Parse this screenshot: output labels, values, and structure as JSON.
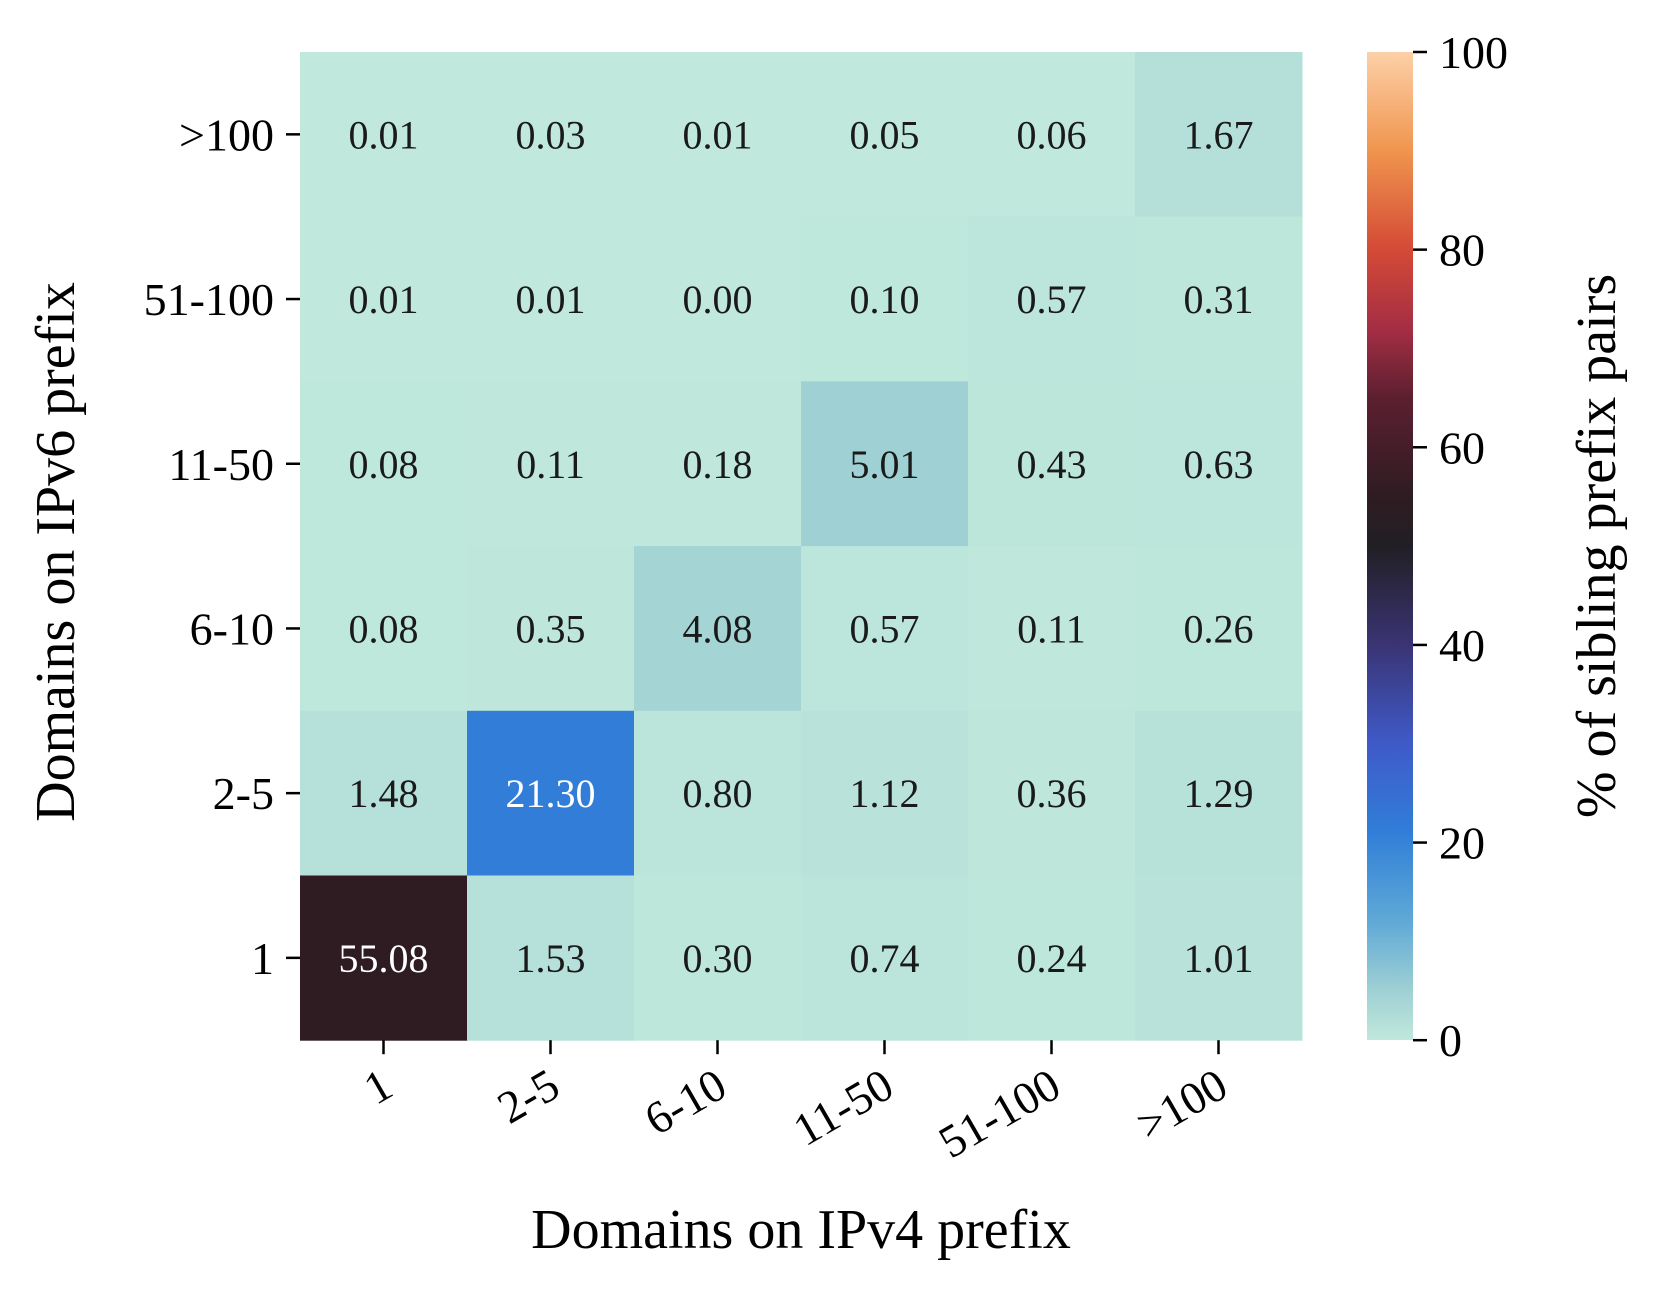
{
  "chart_data": {
    "type": "heatmap",
    "title": "",
    "xlabel": "Domains on IPv4 prefix",
    "ylabel": "Domains on IPv6 prefix",
    "x_categories": [
      "1",
      "2-5",
      "6-10",
      "11-50",
      "51-100",
      ">100"
    ],
    "y_categories": [
      ">100",
      "51-100",
      "11-50",
      "6-10",
      "2-5",
      "1"
    ],
    "values": [
      [
        0.01,
        0.03,
        0.01,
        0.05,
        0.06,
        1.67
      ],
      [
        0.01,
        0.01,
        0.0,
        0.1,
        0.57,
        0.31
      ],
      [
        0.08,
        0.11,
        0.18,
        5.01,
        0.43,
        0.63
      ],
      [
        0.08,
        0.35,
        4.08,
        0.57,
        0.11,
        0.26
      ],
      [
        1.48,
        21.3,
        0.8,
        1.12,
        0.36,
        1.29
      ],
      [
        55.08,
        1.53,
        0.3,
        0.74,
        0.24,
        1.01
      ]
    ],
    "value_labels": [
      [
        "0.01",
        "0.03",
        "0.01",
        "0.05",
        "0.06",
        "1.67"
      ],
      [
        "0.01",
        "0.01",
        "0.00",
        "0.10",
        "0.57",
        "0.31"
      ],
      [
        "0.08",
        "0.11",
        "0.18",
        "5.01",
        "0.43",
        "0.63"
      ],
      [
        "0.08",
        "0.35",
        "4.08",
        "0.57",
        "0.11",
        "0.26"
      ],
      [
        "1.48",
        "21.30",
        "0.80",
        "1.12",
        "0.36",
        "1.29"
      ],
      [
        "55.08",
        "1.53",
        "0.30",
        "0.74",
        "0.24",
        "1.01"
      ]
    ],
    "colorbar": {
      "label": "% of sibling prefix pairs",
      "range": [
        0,
        100
      ],
      "ticks": [
        0,
        20,
        40,
        60,
        80,
        100
      ],
      "tick_labels": [
        "0",
        "20",
        "40",
        "60",
        "80",
        "100"
      ],
      "colormap_stops": [
        {
          "value": 0,
          "color": "#c0e8dc"
        },
        {
          "value": 5,
          "color": "#9fd0d4"
        },
        {
          "value": 12,
          "color": "#5fa9d6"
        },
        {
          "value": 21,
          "color": "#307ed8"
        },
        {
          "value": 30,
          "color": "#3f5ac8"
        },
        {
          "value": 40,
          "color": "#3a3474"
        },
        {
          "value": 50,
          "color": "#211f24"
        },
        {
          "value": 55,
          "color": "#2e1c22"
        },
        {
          "value": 65,
          "color": "#5c1f30"
        },
        {
          "value": 72,
          "color": "#a52e44"
        },
        {
          "value": 80,
          "color": "#d44a36"
        },
        {
          "value": 90,
          "color": "#f0954e"
        },
        {
          "value": 100,
          "color": "#fcd0a8"
        }
      ]
    },
    "text_colors": {
      "dark": "#1a1a1a",
      "light": "#ffffff"
    }
  }
}
